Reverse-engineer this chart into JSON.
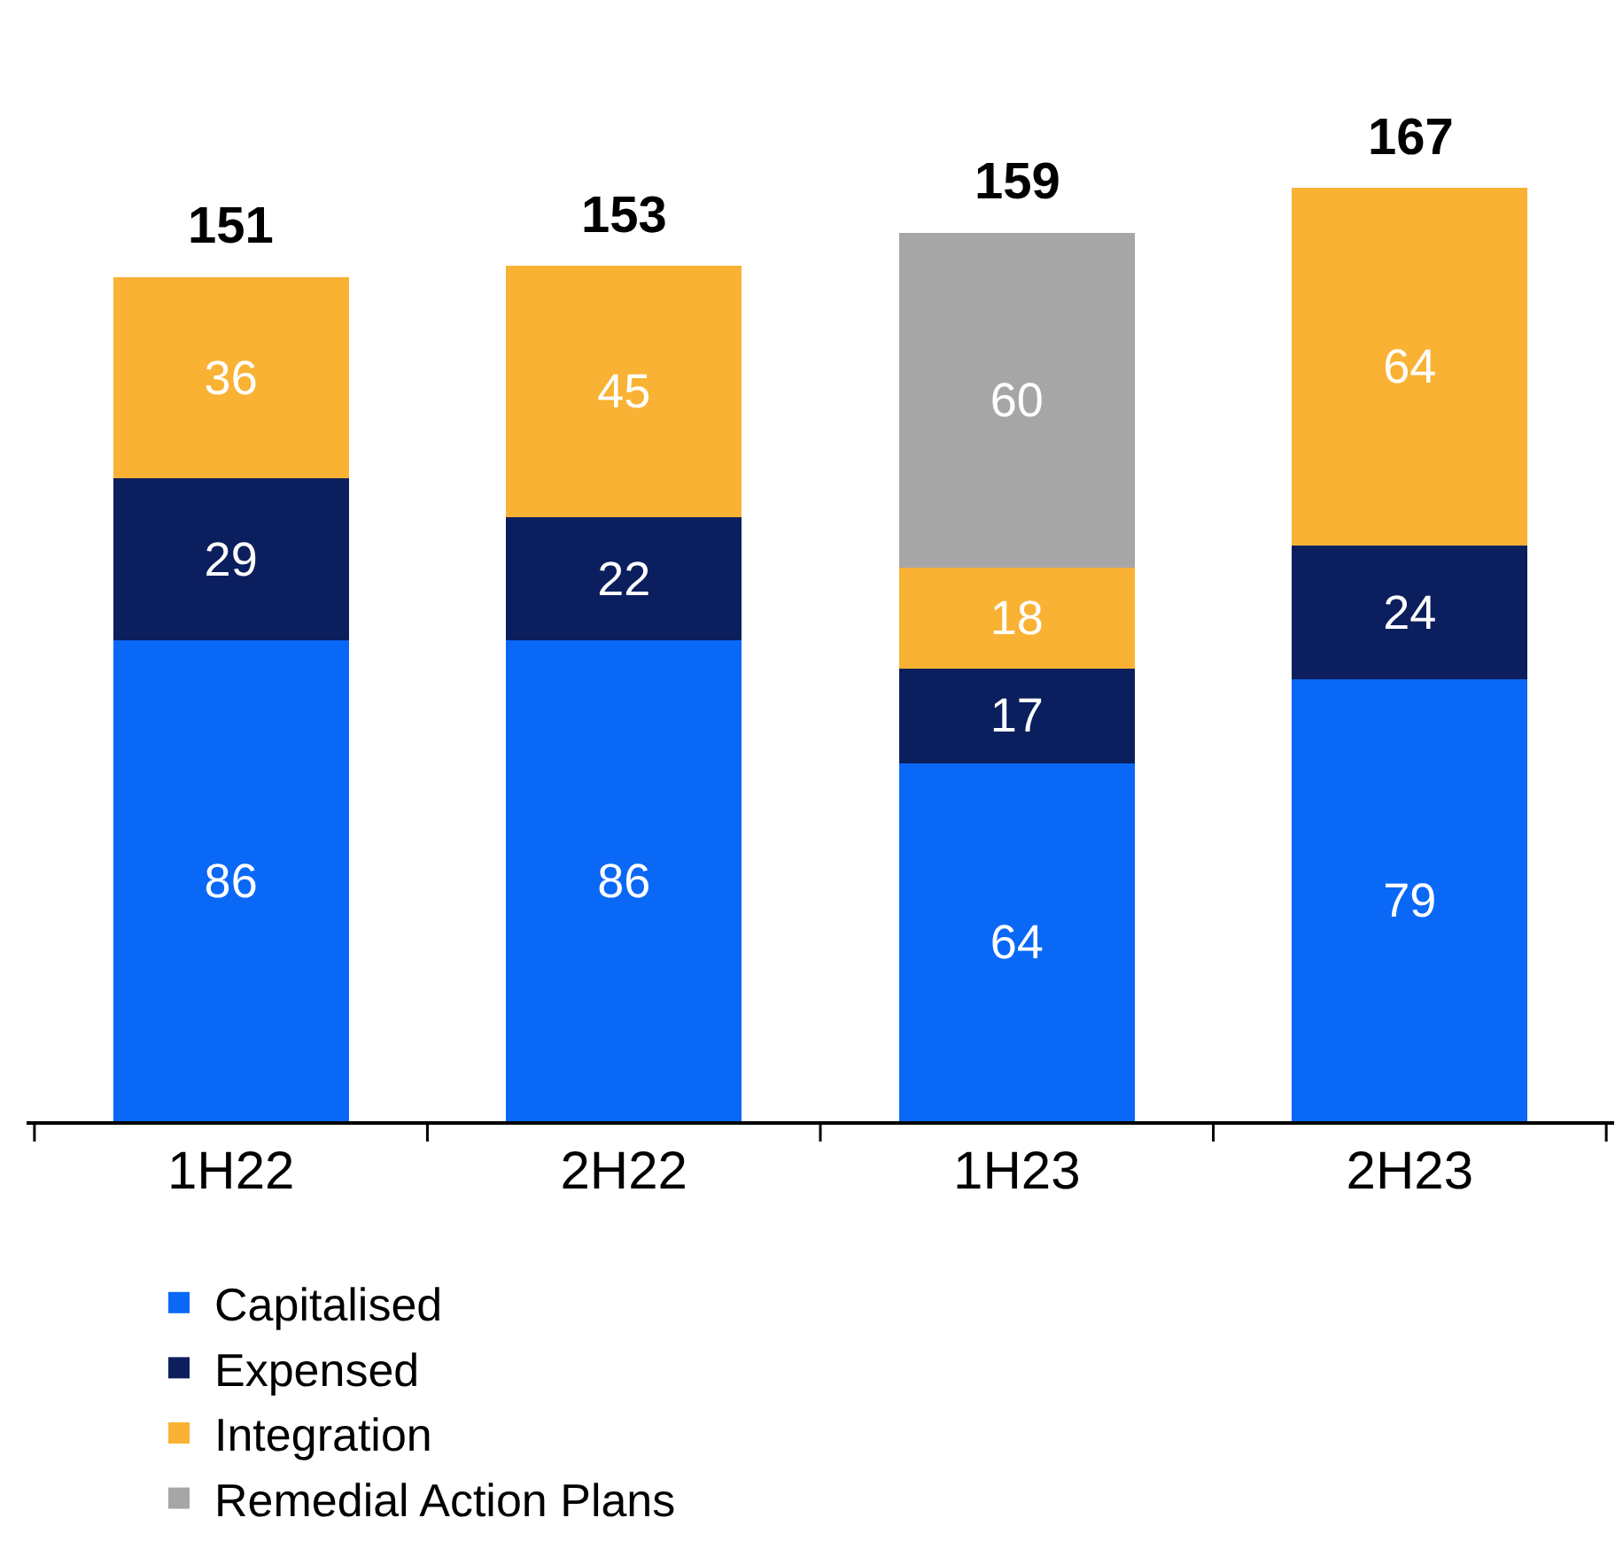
{
  "chart_data": {
    "type": "bar",
    "stacked": true,
    "categories": [
      "1H22",
      "2H22",
      "1H23",
      "2H23"
    ],
    "series": [
      {
        "name": "Capitalised",
        "color": "#0a68f7",
        "values": [
          86,
          86,
          64,
          79
        ]
      },
      {
        "name": "Expensed",
        "color": "#0b1f5e",
        "values": [
          29,
          22,
          17,
          24
        ]
      },
      {
        "name": "Integration",
        "color": "#f9b233",
        "values": [
          36,
          45,
          18,
          64
        ]
      },
      {
        "name": "Remedial Action Plans",
        "color": "#a6a6a6",
        "values": [
          null,
          null,
          60,
          null
        ]
      }
    ],
    "data_labels": true,
    "totals": [
      "151",
      "153",
      "159",
      "167"
    ],
    "legend": "bottom"
  }
}
